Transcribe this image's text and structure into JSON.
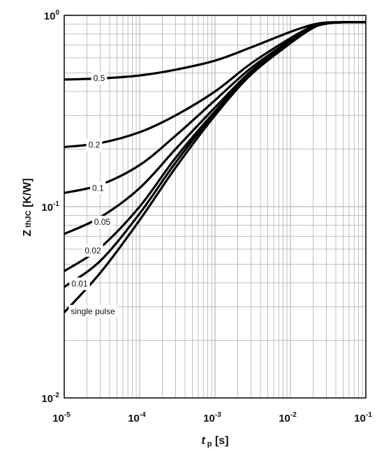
{
  "chart_data": {
    "type": "line",
    "title": "",
    "xlabel": {
      "main": "t",
      "sub": "p",
      "unit": " [s]"
    },
    "ylabel": {
      "main": "Z",
      "sub": "thJC",
      "unit": " [K/W]"
    },
    "x_scale": "log",
    "y_scale": "log",
    "xlim": [
      1e-05,
      0.1
    ],
    "ylim": [
      0.01,
      1.0
    ],
    "grid": true,
    "x_ticks": [
      {
        "value": 1e-05,
        "base": "10",
        "exp": "-5"
      },
      {
        "value": 0.0001,
        "base": "10",
        "exp": "-4"
      },
      {
        "value": 0.001,
        "base": "10",
        "exp": "-3"
      },
      {
        "value": 0.01,
        "base": "10",
        "exp": "-2"
      },
      {
        "value": 0.1,
        "base": "10",
        "exp": "-1"
      }
    ],
    "y_ticks": [
      {
        "value": 0.01,
        "base": "10",
        "exp": "-2"
      },
      {
        "value": 0.1,
        "base": "10",
        "exp": "-1"
      },
      {
        "value": 1.0,
        "base": "10",
        "exp": "0"
      }
    ],
    "series": [
      {
        "name": "0.5",
        "x": [
          1e-05,
          3e-05,
          0.0001,
          0.0003,
          0.001,
          0.003,
          0.01,
          0.02,
          0.03,
          0.05,
          0.1
        ],
        "y": [
          0.462,
          0.468,
          0.485,
          0.52,
          0.58,
          0.68,
          0.82,
          0.895,
          0.918,
          0.92,
          0.92
        ],
        "label_at": [
          2.9e-05,
          0.47
        ]
      },
      {
        "name": "0.2",
        "x": [
          1e-05,
          3e-05,
          0.0001,
          0.0003,
          0.001,
          0.003,
          0.01,
          0.02,
          0.03,
          0.05,
          0.1
        ],
        "y": [
          0.205,
          0.215,
          0.245,
          0.3,
          0.4,
          0.56,
          0.76,
          0.88,
          0.915,
          0.92,
          0.92
        ],
        "label_at": [
          2.5e-05,
          0.21
        ]
      },
      {
        "name": "0.1",
        "x": [
          1e-05,
          3e-05,
          0.0001,
          0.0003,
          0.001,
          0.003,
          0.01,
          0.02,
          0.03,
          0.05,
          0.1
        ],
        "y": [
          0.118,
          0.13,
          0.165,
          0.235,
          0.36,
          0.53,
          0.74,
          0.875,
          0.913,
          0.92,
          0.92
        ],
        "label_at": [
          2.8e-05,
          0.125
        ]
      },
      {
        "name": "0.05",
        "x": [
          1e-05,
          3e-05,
          0.0001,
          0.0003,
          0.001,
          0.003,
          0.01,
          0.02,
          0.03,
          0.05,
          0.1
        ],
        "y": [
          0.072,
          0.088,
          0.125,
          0.2,
          0.33,
          0.51,
          0.73,
          0.87,
          0.91,
          0.92,
          0.92
        ],
        "label_at": [
          3.2e-05,
          0.083
        ]
      },
      {
        "name": "0.02",
        "x": [
          1e-05,
          3e-05,
          0.0001,
          0.0003,
          0.001,
          0.003,
          0.01,
          0.02,
          0.03,
          0.05,
          0.1
        ],
        "y": [
          0.046,
          0.061,
          0.1,
          0.18,
          0.315,
          0.5,
          0.725,
          0.865,
          0.91,
          0.92,
          0.92
        ],
        "label_at": [
          2.4e-05,
          0.059
        ]
      },
      {
        "name": "0.01",
        "x": [
          1e-05,
          3e-05,
          0.0001,
          0.0003,
          0.001,
          0.003,
          0.01,
          0.02,
          0.03,
          0.05,
          0.1
        ],
        "y": [
          0.038,
          0.052,
          0.092,
          0.17,
          0.31,
          0.495,
          0.72,
          0.863,
          0.908,
          0.92,
          0.92
        ],
        "label_at": [
          1.6e-05,
          0.0395
        ]
      },
      {
        "name": "single pulse",
        "x": [
          1e-05,
          3e-05,
          0.0001,
          0.0003,
          0.001,
          0.003,
          0.01,
          0.02,
          0.03,
          0.05,
          0.1
        ],
        "y": [
          0.028,
          0.045,
          0.085,
          0.16,
          0.3,
          0.49,
          0.715,
          0.86,
          0.905,
          0.92,
          0.92
        ],
        "label_at": [
          2.4e-05,
          0.0284
        ]
      }
    ]
  }
}
